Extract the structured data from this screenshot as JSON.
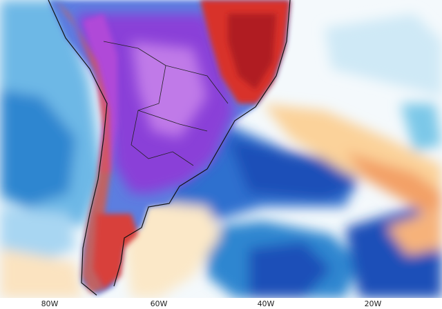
{
  "map": {
    "longitude_labels": [
      "80W",
      "60W",
      "40W",
      "20W"
    ]
  }
}
